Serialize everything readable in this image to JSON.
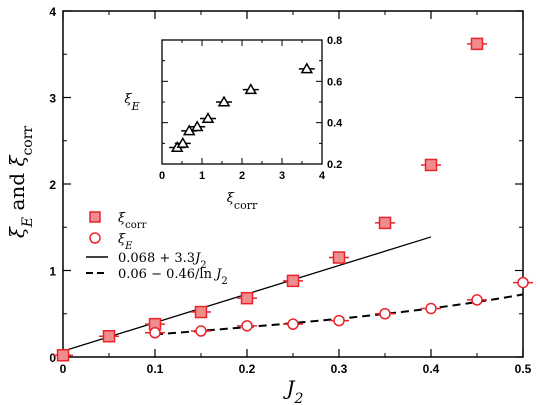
{
  "chart_data": [
    {
      "type": "scatter",
      "xlabel": "J_2",
      "ylabel": "ξ_E   and   ξ_corr",
      "xlim": [
        0,
        0.5
      ],
      "ylim": [
        0,
        4
      ],
      "x_ticks": [
        "0",
        "0.1",
        "0.2",
        "0.3",
        "0.4",
        "0.5"
      ],
      "y_ticks": [
        "0",
        "1",
        "2",
        "3",
        "4"
      ],
      "grid": false,
      "legend_position": "left-middle",
      "series": [
        {
          "name": "ξ_corr",
          "marker": "square",
          "color": "#e8242c",
          "points": [
            [
              0.0,
              0.02
            ],
            [
              0.05,
              0.24
            ],
            [
              0.1,
              0.38
            ],
            [
              0.15,
              0.52
            ],
            [
              0.2,
              0.68
            ],
            [
              0.25,
              0.88
            ],
            [
              0.3,
              1.15
            ],
            [
              0.35,
              1.55
            ],
            [
              0.4,
              2.22
            ],
            [
              0.45,
              3.62
            ]
          ]
        },
        {
          "name": "ξ_E",
          "marker": "circle",
          "color": "#e8242c",
          "points": [
            [
              0.1,
              0.28
            ],
            [
              0.15,
              0.3
            ],
            [
              0.2,
              0.36
            ],
            [
              0.25,
              0.38
            ],
            [
              0.3,
              0.42
            ],
            [
              0.35,
              0.5
            ],
            [
              0.4,
              0.56
            ],
            [
              0.45,
              0.66
            ],
            [
              0.5,
              0.86
            ]
          ]
        },
        {
          "name": "0.068 + 3.3J_2",
          "style": "solid",
          "color": "#000000",
          "intercept": 0.068,
          "slope": 3.3,
          "x_range": [
            0,
            0.4
          ]
        },
        {
          "name": "0.06 − 0.46/ln J_2",
          "style": "dashed",
          "color": "#000000",
          "a": 0.06,
          "b": -0.46,
          "x_range": [
            0.1,
            0.5
          ]
        }
      ]
    },
    {
      "type": "scatter",
      "role": "inset",
      "xlabel": "ξ_corr",
      "ylabel": "ξ_E",
      "xlim": [
        0,
        4
      ],
      "ylim": [
        0.2,
        0.8
      ],
      "x_ticks": [
        "0",
        "1",
        "2",
        "3",
        "4"
      ],
      "y_ticks": [
        "0.2",
        "0.4",
        "0.6",
        "0.8"
      ],
      "series": [
        {
          "marker": "triangle",
          "color": "#000000",
          "points": [
            [
              0.38,
              0.28
            ],
            [
              0.52,
              0.3
            ],
            [
              0.68,
              0.36
            ],
            [
              0.88,
              0.38
            ],
            [
              1.15,
              0.42
            ],
            [
              1.55,
              0.5
            ],
            [
              2.22,
              0.56
            ],
            [
              3.62,
              0.66
            ]
          ]
        }
      ]
    }
  ]
}
